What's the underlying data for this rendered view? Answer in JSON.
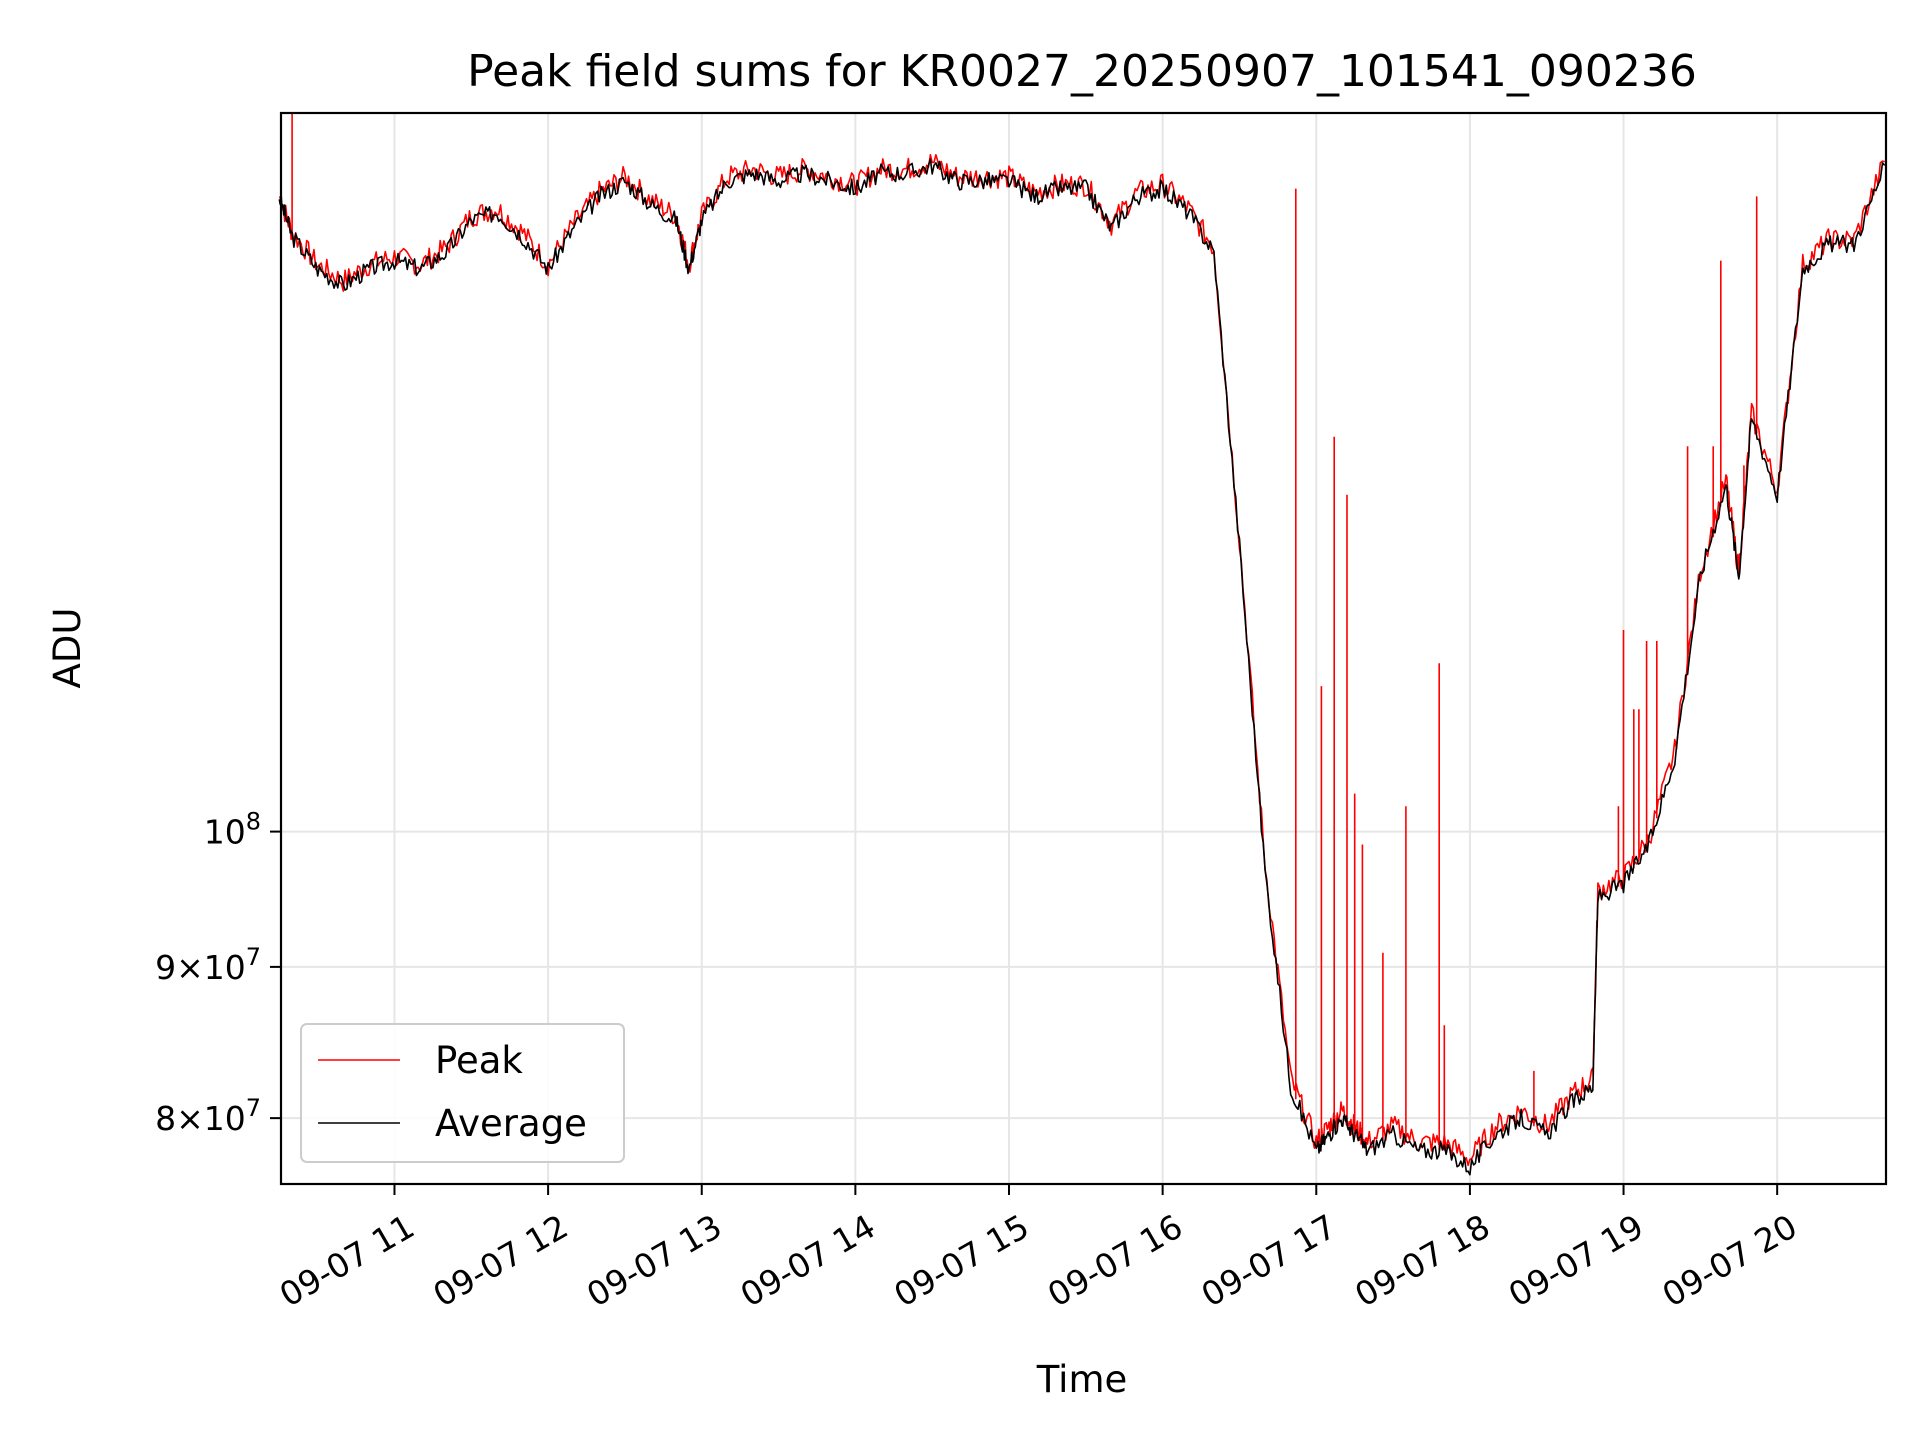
{
  "chart_data": {
    "type": "line",
    "title": "Peak field sums for KR0027_20250907_101541_090236",
    "xlabel": "Time",
    "ylabel": "ADU",
    "y_scale": "log",
    "ylim": [
      76000000,
      175000000
    ],
    "xlim": [
      "09-07 10:15:41",
      "09-07 20:42:30"
    ],
    "grid": true,
    "legend_position": "lower-left",
    "colors": {
      "Peak": "#ff0000",
      "Average": "#000000"
    },
    "x_ticks": [
      "09-07 11",
      "09-07 12",
      "09-07 13",
      "09-07 14",
      "09-07 15",
      "09-07 16",
      "09-07 17",
      "09-07 18",
      "09-07 19",
      "09-07 20"
    ],
    "y_ticks": [
      {
        "value": 80000000,
        "mantissa": "8",
        "exponent": "7"
      },
      {
        "value": 90000000,
        "mantissa": "9",
        "exponent": "7"
      },
      {
        "value": 100000000,
        "mantissa": "",
        "exponent": "8"
      }
    ],
    "x": [
      "10:15",
      "10:20",
      "10:30",
      "10:40",
      "10:50",
      "11:00",
      "11:10",
      "11:20",
      "11:30",
      "11:40",
      "11:50",
      "12:00",
      "12:10",
      "12:20",
      "12:30",
      "12:40",
      "12:50",
      "12:55",
      "13:00",
      "13:10",
      "13:20",
      "13:30",
      "13:40",
      "13:50",
      "14:00",
      "14:10",
      "14:20",
      "14:30",
      "14:40",
      "14:50",
      "15:00",
      "15:10",
      "15:20",
      "15:30",
      "15:40",
      "15:50",
      "16:00",
      "16:10",
      "16:20",
      "16:30",
      "16:40",
      "16:50",
      "17:00",
      "17:05",
      "17:10",
      "17:15",
      "17:20",
      "17:30",
      "17:40",
      "17:50",
      "18:00",
      "18:10",
      "18:20",
      "18:30",
      "18:40",
      "18:48",
      "18:50",
      "19:00",
      "19:10",
      "19:20",
      "19:30",
      "19:40",
      "19:45",
      "19:50",
      "20:00",
      "20:10",
      "20:20",
      "20:30",
      "20:42"
    ],
    "series": [
      {
        "name": "Average",
        "values": [
          164000000,
          159000000,
          155000000,
          153000000,
          155000000,
          156000000,
          155000000,
          157000000,
          161000000,
          162000000,
          159000000,
          155000000,
          160000000,
          164000000,
          166000000,
          163000000,
          161000000,
          155000000,
          161000000,
          166000000,
          167000000,
          166000000,
          167000000,
          166000000,
          165000000,
          167000000,
          167000000,
          168000000,
          166000000,
          166000000,
          166000000,
          164000000,
          165000000,
          165000000,
          160000000,
          164000000,
          165000000,
          162000000,
          157000000,
          125000000,
          97000000,
          82000000,
          78000000,
          79000000,
          80000000,
          79000000,
          78000000,
          79000000,
          78000000,
          78000000,
          77000000,
          79000000,
          80000000,
          79000000,
          81000000,
          82000000,
          95000000,
          96000000,
          99000000,
          106000000,
          122000000,
          131000000,
          122000000,
          138000000,
          130000000,
          155000000,
          158000000,
          158000000,
          168000000
        ]
      },
      {
        "name": "Peak",
        "values": [
          164000000,
          159500000,
          155500000,
          153500000,
          155500000,
          156500000,
          155500000,
          157500000,
          161500000,
          162500000,
          159500000,
          155500000,
          160500000,
          164500000,
          166500000,
          163500000,
          161500000,
          155500000,
          161500000,
          166500000,
          167500000,
          166500000,
          167500000,
          166500000,
          165500000,
          167500000,
          167500000,
          168500000,
          166500000,
          166500000,
          166500000,
          164500000,
          165500000,
          165500000,
          160500000,
          164500000,
          165500000,
          162500000,
          157500000,
          125500000,
          97500000,
          82500000,
          78500000,
          79500000,
          80500000,
          79500000,
          78500000,
          79500000,
          78500000,
          78500000,
          77500000,
          79500000,
          80500000,
          79500000,
          81500000,
          82500000,
          95500000,
          96500000,
          99500000,
          106500000,
          122500000,
          131500000,
          122500000,
          138500000,
          130500000,
          155500000,
          158500000,
          158500000,
          168500000
        ]
      }
    ],
    "peak_spikes": [
      {
        "x": "10:20",
        "y": 175000000
      },
      {
        "x": "16:52",
        "y": 165000000
      },
      {
        "x": "17:02",
        "y": 112000000
      },
      {
        "x": "17:07",
        "y": 136000000
      },
      {
        "x": "17:12",
        "y": 130000000
      },
      {
        "x": "17:15",
        "y": 103000000
      },
      {
        "x": "17:18",
        "y": 99000000
      },
      {
        "x": "17:26",
        "y": 91000000
      },
      {
        "x": "17:35",
        "y": 102000000
      },
      {
        "x": "17:48",
        "y": 114000000
      },
      {
        "x": "17:50",
        "y": 86000000
      },
      {
        "x": "18:25",
        "y": 83000000
      },
      {
        "x": "18:58",
        "y": 102000000
      },
      {
        "x": "19:00",
        "y": 117000000
      },
      {
        "x": "19:04",
        "y": 110000000
      },
      {
        "x": "19:06",
        "y": 110000000
      },
      {
        "x": "19:09",
        "y": 116000000
      },
      {
        "x": "19:13",
        "y": 116000000
      },
      {
        "x": "19:25",
        "y": 135000000
      },
      {
        "x": "19:35",
        "y": 135000000
      },
      {
        "x": "19:38",
        "y": 156000000
      },
      {
        "x": "19:47",
        "y": 133000000
      },
      {
        "x": "19:52",
        "y": 164000000
      }
    ]
  }
}
